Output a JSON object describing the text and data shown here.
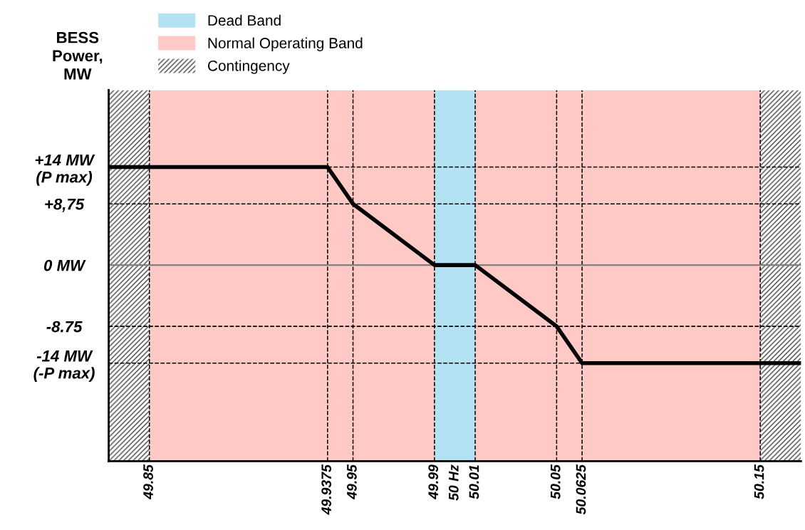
{
  "chart_data": {
    "type": "line",
    "ylabel": "BESS\nPower,\nMW",
    "x": [
      49.83,
      49.9375,
      49.95,
      49.99,
      50.01,
      50.05,
      50.0625,
      50.17
    ],
    "series": [
      {
        "color": "#000000",
        "values": [
          14,
          14,
          8.75,
          0,
          0,
          -8.75,
          -14,
          -14
        ]
      }
    ],
    "xlim": [
      49.83,
      50.17
    ],
    "xticks": [
      49.85,
      49.9375,
      49.95,
      49.99,
      {
        "value": 50,
        "label": "50 Hz"
      },
      50.01,
      50.05,
      50.0625,
      50.15
    ],
    "ylim": [
      -28,
      25
    ],
    "yticks": [
      {
        "value": 14,
        "label": "+14 MW\n(P max)"
      },
      {
        "value": 8.75,
        "label": "+8,75"
      },
      {
        "value": 0,
        "label": "0 MW"
      },
      {
        "value": -8.75,
        "label": "-8.75"
      },
      {
        "value": -14,
        "label": "-14 MW\n(-P max)"
      }
    ],
    "bands": [
      {
        "axis": "x",
        "from": 49.99,
        "to": 50.01,
        "label": "Dead Band",
        "color": "#b3e3f3"
      },
      {
        "axis": "x",
        "from": 49.85,
        "to": 49.99,
        "label": "Normal Operating Band",
        "color": "#ffc9c5"
      },
      {
        "axis": "x",
        "from": 50.01,
        "to": 50.15,
        "color": "#ffc9c5"
      },
      {
        "axis": "x",
        "from": 49.83,
        "to": 49.85,
        "label": "Contingency"
      },
      {
        "axis": "x",
        "from": 50.15,
        "to": 50.17
      }
    ],
    "ref_lines": [
      {
        "axis": "x",
        "value": 49.85,
        "line_style": "dashed"
      },
      {
        "axis": "x",
        "value": 49.9375,
        "line_style": "dashed"
      },
      {
        "axis": "x",
        "value": 49.95,
        "line_style": "dashed"
      },
      {
        "axis": "x",
        "value": 49.99,
        "line_style": "dashed"
      },
      {
        "axis": "x",
        "value": 50.01,
        "line_style": "dashed"
      },
      {
        "axis": "x",
        "value": 50.05,
        "line_style": "dashed"
      },
      {
        "axis": "x",
        "value": 50.0625,
        "line_style": "dashed"
      },
      {
        "axis": "x",
        "value": 50.15,
        "line_style": "dashed"
      },
      {
        "axis": "y",
        "value": 14,
        "line_style": "dashed"
      },
      {
        "axis": "y",
        "value": 8.75,
        "line_style": "dashed"
      },
      {
        "axis": "y",
        "value": 0,
        "line_style": "solid",
        "color": "#808080"
      },
      {
        "axis": "y",
        "value": -8.75,
        "line_style": "dashed"
      },
      {
        "axis": "y",
        "value": -14,
        "line_style": "dashed"
      }
    ],
    "grid": false,
    "legend": "top left",
    "line_style": "solid",
    "marker": "none"
  }
}
